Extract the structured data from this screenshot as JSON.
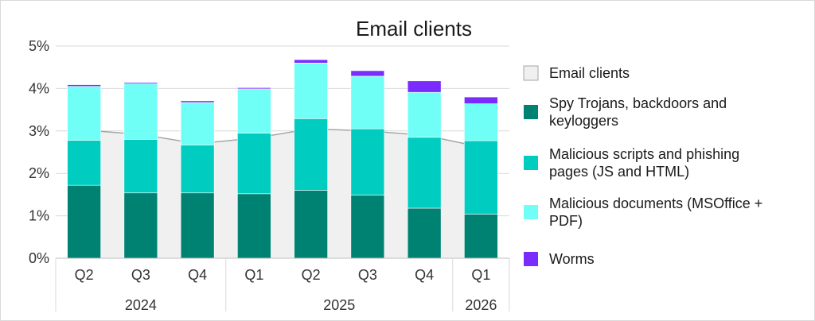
{
  "chart_data": {
    "type": "bar",
    "title": "Email clients",
    "categories": [
      "Q2",
      "Q3",
      "Q4",
      "Q1",
      "Q2",
      "Q3",
      "Q4",
      "Q1"
    ],
    "year_groups": [
      {
        "label": "2024",
        "count": 3
      },
      {
        "label": "2025",
        "count": 4
      },
      {
        "label": "2026",
        "count": 1
      }
    ],
    "ylim": [
      0,
      5
    ],
    "y_ticks": [
      "0%",
      "1%",
      "2%",
      "3%",
      "4%",
      "5%"
    ],
    "y_tick_values": [
      0,
      1,
      2,
      3,
      4,
      5
    ],
    "grid": true,
    "legend_position": "right",
    "area_series": {
      "name": "Email clients",
      "color": "#f0f0f0",
      "line_color": "#a6a6a6",
      "values": [
        3.02,
        2.92,
        2.7,
        2.83,
        3.05,
        3.0,
        2.9,
        2.62
      ]
    },
    "series": [
      {
        "name": "Spy Trojans, backdoors and keyloggers",
        "color": "#008272",
        "values": [
          1.72,
          1.54,
          1.54,
          1.52,
          1.6,
          1.49,
          1.18,
          1.04
        ]
      },
      {
        "name": "Malicious scripts and phishing pages (JS and HTML)",
        "color": "#00ccc0",
        "values": [
          1.06,
          1.26,
          1.13,
          1.43,
          1.69,
          1.56,
          1.67,
          1.73
        ]
      },
      {
        "name": "Malicious documents (MSOffice + PDF)",
        "color": "#6ffff6",
        "values": [
          1.27,
          1.31,
          1.0,
          1.04,
          1.31,
          1.24,
          1.06,
          0.87
        ]
      },
      {
        "name": "Worms",
        "color": "#7a2cff",
        "values": [
          0.04,
          0.03,
          0.04,
          0.03,
          0.08,
          0.13,
          0.27,
          0.16
        ]
      }
    ],
    "legend": [
      {
        "lines": [
          "Email clients"
        ]
      },
      {
        "lines": [
          "Spy Trojans, backdoors and",
          "keyloggers"
        ]
      },
      {
        "lines": [
          "Malicious scripts and phishing",
          "pages (JS and HTML)"
        ]
      },
      {
        "lines": [
          "Malicious documents (MSOffice +",
          "PDF)"
        ]
      },
      {
        "lines": [
          "Worms"
        ]
      }
    ]
  }
}
